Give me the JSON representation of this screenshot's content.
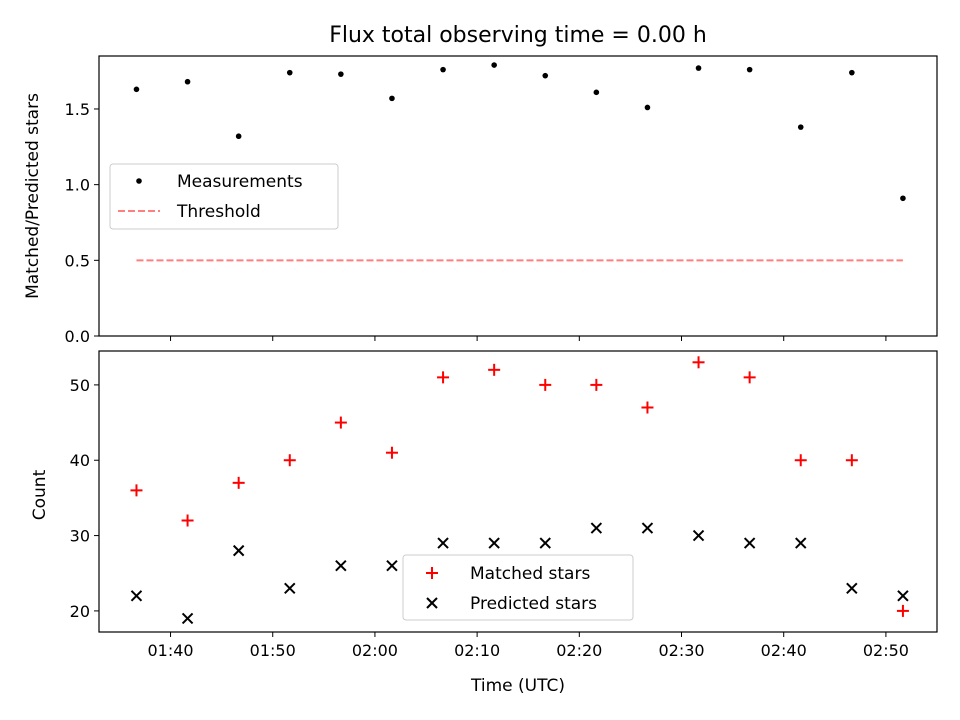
{
  "chart_data": [
    {
      "type": "scatter",
      "title": "Flux total observing time = 0.00 h",
      "xlabel": "",
      "ylabel": "Matched/Predicted stars",
      "xlim": [
        "01:33:00",
        "02:55:00"
      ],
      "ylim": [
        0,
        1.85
      ],
      "xticks": [
        "01:40",
        "01:50",
        "02:00",
        "02:10",
        "02:20",
        "02:30",
        "02:40",
        "02:50"
      ],
      "yticks": [
        "0.0",
        "0.5",
        "1.0",
        "1.5"
      ],
      "x": [
        "01:36:40",
        "01:41:40",
        "01:46:40",
        "01:51:40",
        "01:56:40",
        "02:01:40",
        "02:06:40",
        "02:11:40",
        "02:16:40",
        "02:21:40",
        "02:26:40",
        "02:31:40",
        "02:36:40",
        "02:41:40",
        "02:46:40",
        "02:51:40"
      ],
      "series": [
        {
          "name": "Measurements",
          "marker": "dot",
          "color": "#000000",
          "values": [
            1.63,
            1.68,
            1.32,
            1.74,
            1.73,
            1.57,
            1.76,
            1.79,
            1.72,
            1.61,
            1.51,
            1.77,
            1.76,
            1.38,
            1.74,
            0.91
          ]
        },
        {
          "name": "Threshold",
          "marker": "dashed-line",
          "color": "#ff7f7f",
          "x": [
            "01:36:40",
            "02:51:40"
          ],
          "values": [
            0.5,
            0.5
          ]
        }
      ],
      "legend": "center-left",
      "grid": false
    },
    {
      "type": "scatter",
      "title": "",
      "xlabel": "Time (UTC)",
      "ylabel": "Count",
      "xlim": [
        "01:33:00",
        "02:55:00"
      ],
      "ylim": [
        17.2,
        54.5
      ],
      "xticks": [
        "01:40",
        "01:50",
        "02:00",
        "02:10",
        "02:20",
        "02:30",
        "02:40",
        "02:50"
      ],
      "yticks": [
        "20",
        "30",
        "40",
        "50"
      ],
      "x": [
        "01:36:40",
        "01:41:40",
        "01:46:40",
        "01:51:40",
        "01:56:40",
        "02:01:40",
        "02:06:40",
        "02:11:40",
        "02:16:40",
        "02:21:40",
        "02:26:40",
        "02:31:40",
        "02:36:40",
        "02:41:40",
        "02:46:40",
        "02:51:40"
      ],
      "series": [
        {
          "name": "Matched stars",
          "marker": "plus",
          "color": "#ff0000",
          "values": [
            36,
            32,
            37,
            40,
            45,
            41,
            51,
            52,
            50,
            50,
            47,
            53,
            51,
            40,
            40,
            20
          ]
        },
        {
          "name": "Predicted stars",
          "marker": "x",
          "color": "#000000",
          "values": [
            22,
            19,
            28,
            23,
            26,
            26,
            29,
            29,
            29,
            31,
            31,
            30,
            29,
            29,
            23,
            22
          ]
        }
      ],
      "legend": "lower-center",
      "grid": false
    }
  ]
}
